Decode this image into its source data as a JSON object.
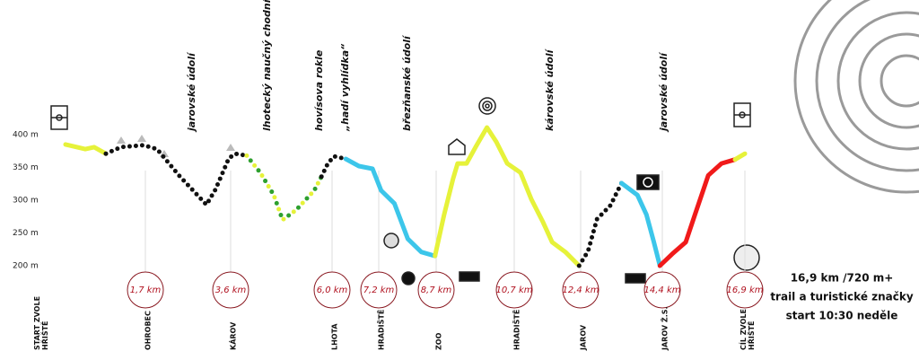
{
  "chart_data": {
    "type": "line",
    "ylim": [
      200,
      400
    ],
    "yticks": [
      {
        "value": 400,
        "label": "400 m"
      },
      {
        "value": 350,
        "label": "350 m"
      },
      {
        "value": 300,
        "label": "300 m"
      },
      {
        "value": 250,
        "label": "250 m"
      },
      {
        "value": 200,
        "label": "200 m"
      }
    ],
    "annotations": [
      "jarovské údolí",
      "lhotecký naučný chodník",
      "hovísova rokle",
      "„hadí vyhlídka“",
      "březňanské údolí",
      "károvské údolí",
      "jarovské údolí"
    ],
    "waypoints": [
      {
        "lines": [
          "START ZVOLE",
          "HŘIŠTĚ"
        ]
      },
      {
        "km": 1.7,
        "km_label": "1,7 km",
        "lines": [
          "OHROBEC"
        ]
      },
      {
        "km": 3.6,
        "km_label": "3,6 km",
        "lines": [
          "KÁROV"
        ]
      },
      {
        "km": 6.0,
        "km_label": "6,0 km",
        "lines": [
          "LHOTA"
        ]
      },
      {
        "km": 7.2,
        "km_label": "7,2 km",
        "lines": [
          "HRADIŠTĚ"
        ]
      },
      {
        "km": 8.7,
        "km_label": "8,7 km",
        "lines": [
          "ZOO"
        ]
      },
      {
        "km": 10.7,
        "km_label": "10,7 km",
        "lines": [
          "HRADIŠTĚ"
        ]
      },
      {
        "km": 12.4,
        "km_label": "12,4 km",
        "lines": [
          "JAROV"
        ]
      },
      {
        "km": 14.4,
        "km_label": "14,4 km",
        "lines": [
          "JAROV Ž.S."
        ]
      },
      {
        "km": 16.9,
        "km_label": "16,9 km",
        "lines": [
          "CÍL ZVOLE",
          "HŘIŠTĚ"
        ]
      }
    ],
    "series": [
      {
        "color": "#e6f23a",
        "style": "solid",
        "x": [
          0,
          0.42,
          0.61,
          0.86
        ],
        "y": [
          385,
          378,
          381,
          371
        ]
      },
      {
        "color": "#111111",
        "style": "dotted",
        "x": [
          0.86,
          1.18,
          1.66,
          1.96,
          2.46,
          3.06,
          3.26,
          3.56,
          3.71,
          3.98
        ],
        "y": [
          371,
          381,
          384,
          378,
          337,
          293,
          316,
          364,
          371,
          368
        ]
      },
      {
        "color": "#e6f23a",
        "color2": "#2ea02e",
        "style": "dotted",
        "x": [
          3.98,
          4.3,
          4.62,
          4.83,
          5.15,
          5.58,
          5.75
        ],
        "y": [
          368,
          342,
          308,
          270,
          285,
          315,
          336
        ]
      },
      {
        "color": "#111111",
        "style": "dotted",
        "x": [
          5.75,
          5.9,
          6.05,
          6.35
        ],
        "y": [
          336,
          356,
          367,
          363
        ]
      },
      {
        "color": "#3cc6ea",
        "style": "solid",
        "x": [
          6.35,
          6.69,
          7.04,
          7.26,
          7.61,
          7.96,
          8.31,
          8.67
        ],
        "y": [
          363,
          352,
          348,
          315,
          295,
          241,
          221,
          215
        ]
      },
      {
        "color": "#e6f23a",
        "style": "solid",
        "x": [
          8.67,
          8.9,
          9.13,
          9.25,
          9.48,
          9.71,
          10.0,
          10.24,
          10.52,
          10.86,
          11.14,
          11.44,
          11.67,
          12.01,
          12.36
        ],
        "y": [
          215,
          277,
          332,
          356,
          356,
          381,
          411,
          389,
          356,
          342,
          301,
          266,
          236,
          221,
          200
        ]
      },
      {
        "color": "#111111",
        "style": "dotted",
        "x": [
          12.36,
          12.58,
          12.8,
          13.13,
          13.4
        ],
        "y": [
          200,
          222,
          271,
          292,
          326
        ]
      },
      {
        "color": "#3cc6ea",
        "style": "solid",
        "x": [
          13.4,
          13.79,
          14.01,
          14.19,
          14.34
        ],
        "y": [
          326,
          308,
          278,
          237,
          200
        ]
      },
      {
        "color": "#f01a1a",
        "style": "solid",
        "x": [
          14.34,
          14.7,
          15.11,
          15.38,
          15.79,
          16.19,
          16.6
        ],
        "y": [
          200,
          218,
          236,
          277,
          338,
          356,
          362
        ]
      },
      {
        "color": "#e6f23a",
        "style": "solid",
        "x": [
          16.6,
          16.9
        ],
        "y": [
          362,
          371
        ]
      }
    ],
    "info": [
      "16,9 km /720 m+",
      "trail a turistické značky",
      "start 10:30   neděle"
    ]
  }
}
